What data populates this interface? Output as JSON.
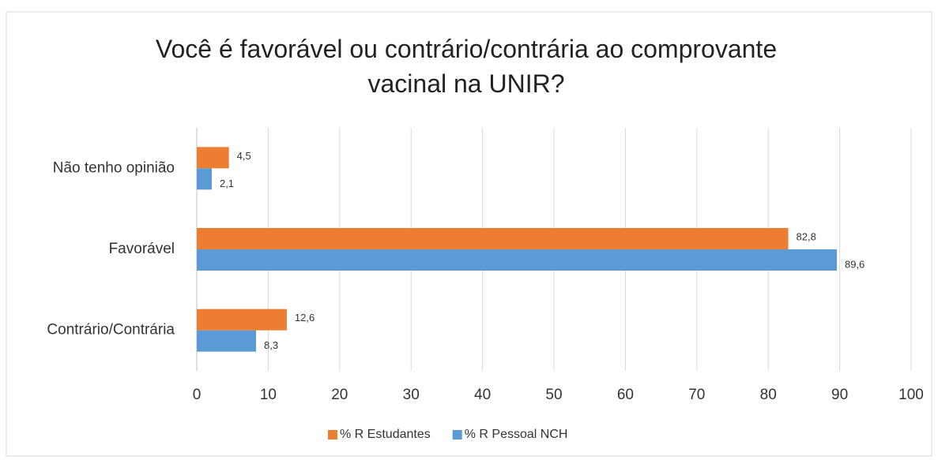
{
  "chart_data": {
    "type": "hbar",
    "title": "Você é favorável ou contrário/contrária ao comprovante vacinal na UNIR?",
    "categories": [
      "Não tenho opinião",
      "Favorável",
      "Contrário/Contrária"
    ],
    "series": [
      {
        "name": "% R Estudantes",
        "color": "#ed7d31",
        "values": [
          4.5,
          82.8,
          12.6
        ],
        "value_labels": [
          "4,5",
          "82,8",
          "12,6"
        ]
      },
      {
        "name": "% R Pessoal NCH",
        "color": "#5b9bd5",
        "values": [
          2.1,
          89.6,
          8.3
        ],
        "value_labels": [
          "2,1",
          "89,6",
          "8,3"
        ]
      }
    ],
    "xlim": [
      0,
      100
    ],
    "xticks": [
      0,
      10,
      20,
      30,
      40,
      50,
      60,
      70,
      80,
      90,
      100
    ],
    "grid": true,
    "legend": "bottom"
  }
}
